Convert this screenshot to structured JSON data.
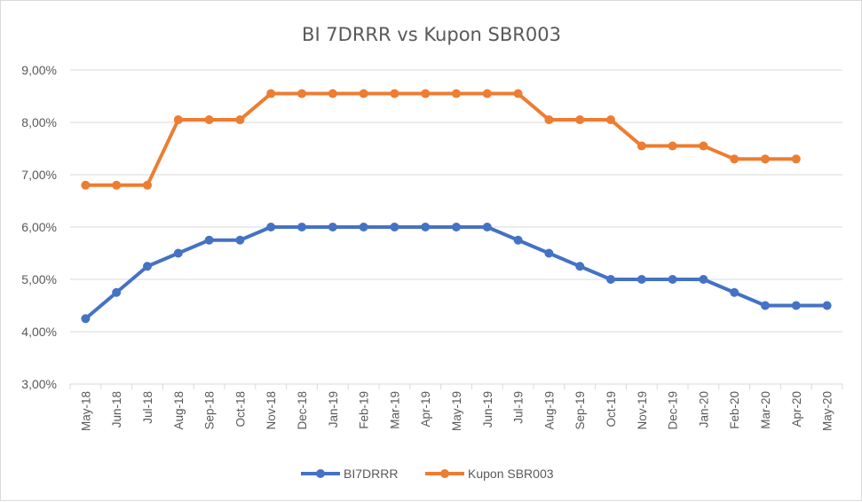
{
  "chart_data": {
    "type": "line",
    "title": "BI 7DRRR vs Kupon SBR003",
    "categories": [
      "May-18",
      "Jun-18",
      "Jul-18",
      "Aug-18",
      "Sep-18",
      "Oct-18",
      "Nov-18",
      "Dec-18",
      "Jan-19",
      "Feb-19",
      "Mar-19",
      "Apr-19",
      "May-19",
      "Jun-19",
      "Jul-19",
      "Aug-19",
      "Sep-19",
      "Oct-19",
      "Nov-19",
      "Dec-19",
      "Jan-20",
      "Feb-20",
      "Mar-20",
      "Apr-20",
      "May-20"
    ],
    "ylim": [
      3,
      9
    ],
    "yticks": [
      3,
      4,
      5,
      6,
      7,
      8,
      9
    ],
    "ytick_labels": [
      "3,00%",
      "4,00%",
      "5,00%",
      "6,00%",
      "7,00%",
      "8,00%",
      "9,00%"
    ],
    "grid": true,
    "legend_position": "bottom",
    "series": [
      {
        "name": "BI7DRRR",
        "color": "#4472c4",
        "values": [
          4.25,
          4.75,
          5.25,
          5.5,
          5.75,
          5.75,
          6.0,
          6.0,
          6.0,
          6.0,
          6.0,
          6.0,
          6.0,
          6.0,
          5.75,
          5.5,
          5.25,
          5.0,
          5.0,
          5.0,
          5.0,
          4.75,
          4.5,
          4.5,
          4.5
        ]
      },
      {
        "name": "Kupon SBR003",
        "color": "#ed7d31",
        "values": [
          6.8,
          6.8,
          6.8,
          8.05,
          8.05,
          8.05,
          8.55,
          8.55,
          8.55,
          8.55,
          8.55,
          8.55,
          8.55,
          8.55,
          8.55,
          8.05,
          8.05,
          8.05,
          7.55,
          7.55,
          7.55,
          7.3,
          7.3,
          7.3,
          null
        ]
      }
    ]
  }
}
